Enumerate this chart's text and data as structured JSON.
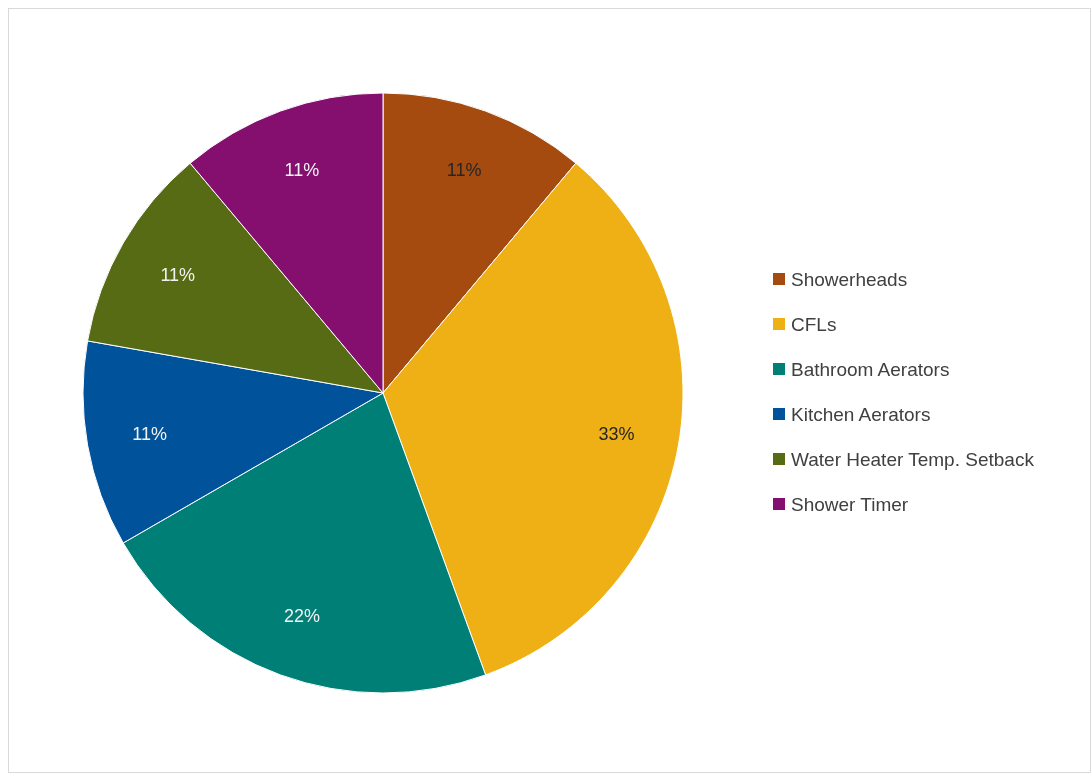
{
  "chart_data": {
    "type": "pie",
    "categories": [
      "Showerheads",
      "CFLs",
      "Bathroom Aerators",
      "Kitchen Aerators",
      "Water Heater Temp. Setback",
      "Shower Timer"
    ],
    "values": [
      11,
      33,
      22,
      11,
      11,
      11
    ],
    "colors": [
      "#a54b10",
      "#eeb014",
      "#007f77",
      "#00529b",
      "#566b13",
      "#850f6f"
    ],
    "value_labels": [
      "11%",
      "33%",
      "22%",
      "11%",
      "11%",
      "11%"
    ],
    "legend": "right"
  }
}
